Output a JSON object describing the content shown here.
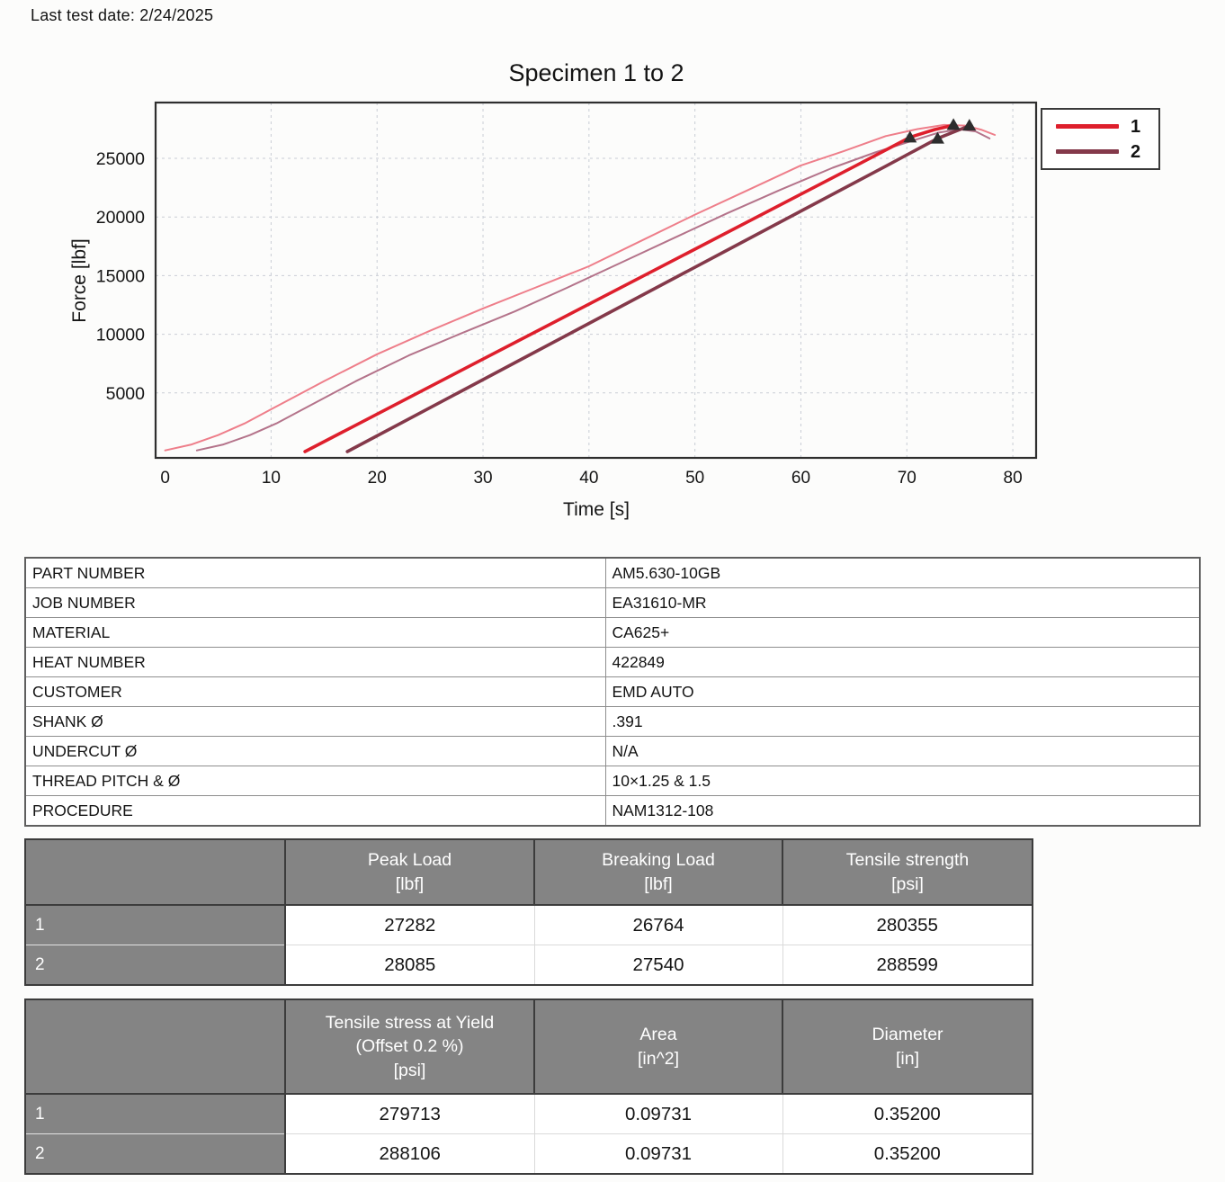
{
  "header": {
    "last_test_date": "Last test date: 2/24/2025"
  },
  "colors": {
    "grid": "#c9cdd5",
    "frame": "#2e2e2e",
    "text": "#141414",
    "table_header_bg": "#848484",
    "table_header_text": "#ffffff",
    "accent_red": "#de1f2c",
    "accent_maroon": "#84394a"
  },
  "chart_data": {
    "type": "line",
    "title": "Specimen 1 to 2",
    "xlabel": "Time [s]",
    "ylabel": "Force [lbf]",
    "xlim": [
      -0.9,
      82.2
    ],
    "ylim": [
      -540,
      29760
    ],
    "xticks": [
      0,
      10,
      20,
      30,
      40,
      50,
      60,
      70,
      80
    ],
    "yticks": [
      5000,
      10000,
      15000,
      20000,
      25000
    ],
    "grid": true,
    "legend_position": "outside-top-right",
    "legend": [
      {
        "label": "1",
        "color": "#de1f2c"
      },
      {
        "label": "2",
        "color": "#84394a"
      }
    ],
    "marker_color": "#2d2d2d",
    "series": [
      {
        "name": "specimen-1-trace",
        "color": "#ee7e8a",
        "width": 2,
        "points": [
          [
            0,
            100
          ],
          [
            2.5,
            600
          ],
          [
            5,
            1400
          ],
          [
            7.5,
            2400
          ],
          [
            10,
            3600
          ],
          [
            12.5,
            4800
          ],
          [
            15,
            6000
          ],
          [
            20,
            8300
          ],
          [
            25,
            10300
          ],
          [
            30,
            12200
          ],
          [
            35,
            14000
          ],
          [
            40,
            15800
          ],
          [
            45,
            18000
          ],
          [
            50,
            20200
          ],
          [
            55,
            22300
          ],
          [
            60,
            24400
          ],
          [
            64,
            25600
          ],
          [
            68,
            26900
          ],
          [
            71,
            27500
          ],
          [
            73.5,
            27850
          ],
          [
            75.5,
            27800
          ],
          [
            77,
            27450
          ],
          [
            78.3,
            27000
          ]
        ]
      },
      {
        "name": "specimen-2-trace",
        "color": "#b4738a",
        "width": 2,
        "points": [
          [
            3,
            100
          ],
          [
            5.5,
            600
          ],
          [
            8,
            1400
          ],
          [
            10.5,
            2400
          ],
          [
            13,
            3600
          ],
          [
            15.5,
            4800
          ],
          [
            18,
            6000
          ],
          [
            23,
            8200
          ],
          [
            28,
            10100
          ],
          [
            33,
            11950
          ],
          [
            38,
            14000
          ],
          [
            43,
            16100
          ],
          [
            48,
            18200
          ],
          [
            53,
            20300
          ],
          [
            58,
            22300
          ],
          [
            63,
            24200
          ],
          [
            67,
            25500
          ],
          [
            70.5,
            26500
          ],
          [
            73,
            27200
          ],
          [
            75,
            27480
          ],
          [
            76.5,
            27300
          ],
          [
            77.8,
            26700
          ]
        ]
      },
      {
        "name": "specimen-1-offset-line",
        "color": "#de1f2c",
        "width": 3.6,
        "points": [
          [
            13.2,
            0
          ],
          [
            30,
            7880
          ],
          [
            50,
            17260
          ],
          [
            65,
            24290
          ],
          [
            70.3,
            26800
          ],
          [
            72.6,
            27450
          ],
          [
            74.4,
            27820
          ]
        ]
      },
      {
        "name": "specimen-2-offset-line",
        "color": "#84394a",
        "width": 3.6,
        "points": [
          [
            17.2,
            0
          ],
          [
            34,
            8050
          ],
          [
            54,
            17630
          ],
          [
            68,
            24330
          ],
          [
            72.9,
            26700
          ],
          [
            74.9,
            27420
          ],
          [
            75.9,
            27780
          ]
        ]
      }
    ],
    "markers": [
      {
        "name": "break-marker-1",
        "x": 70.3,
        "y": 26820,
        "shape": "triangle-up"
      },
      {
        "name": "break-marker-2",
        "x": 72.9,
        "y": 26720,
        "shape": "triangle-up"
      },
      {
        "name": "peak-marker-1",
        "x": 74.4,
        "y": 27890,
        "shape": "triangle-up"
      },
      {
        "name": "peak-marker-2",
        "x": 75.9,
        "y": 27830,
        "shape": "triangle-up"
      }
    ]
  },
  "info_table": {
    "rows": [
      {
        "label": "PART NUMBER",
        "value": "AM5.630-10GB"
      },
      {
        "label": "JOB NUMBER",
        "value": "EA31610-MR"
      },
      {
        "label": "MATERIAL",
        "value": "CA625+"
      },
      {
        "label": "HEAT NUMBER",
        "value": "422849"
      },
      {
        "label": "CUSTOMER",
        "value": "EMD AUTO"
      },
      {
        "label": "SHANK Ø",
        "value": ".391"
      },
      {
        "label": "UNDERCUT Ø",
        "value": "N/A"
      },
      {
        "label": "THREAD PITCH & Ø",
        "value": "10×1.25 & 1.5"
      },
      {
        "label": "PROCEDURE",
        "value": "NAM1312-108"
      }
    ]
  },
  "results_tables": [
    {
      "name": "load-results",
      "columns": [
        "",
        "Peak Load\n[lbf]",
        "Breaking Load\n[lbf]",
        "Tensile strength\n[psi]"
      ],
      "rows": [
        {
          "label": "1",
          "values": [
            "27282",
            "26764",
            "280355"
          ]
        },
        {
          "label": "2",
          "values": [
            "28085",
            "27540",
            "288599"
          ]
        }
      ]
    },
    {
      "name": "yield-results",
      "columns": [
        "",
        "Tensile stress at Yield\n(Offset 0.2 %)\n[psi]",
        "Area\n[in^2]",
        "Diameter\n[in]"
      ],
      "rows": [
        {
          "label": "1",
          "values": [
            "279713",
            "0.09731",
            "0.35200"
          ]
        },
        {
          "label": "2",
          "values": [
            "288106",
            "0.09731",
            "0.35200"
          ]
        }
      ]
    }
  ]
}
